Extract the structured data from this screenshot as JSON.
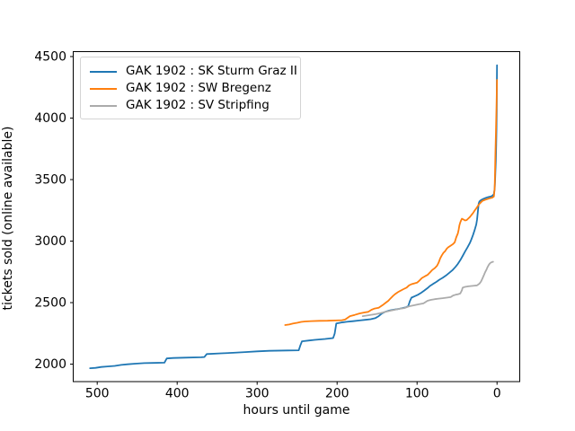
{
  "figure": {
    "background": "#ffffff",
    "spine_color": "#000000",
    "tick_label_color": "#000000"
  },
  "chart_data": {
    "type": "line",
    "title": "",
    "xlabel": "hours until game",
    "ylabel": "tickets sold (online available)",
    "x_axis_reversed": true,
    "xlim": [
      530,
      -28.4
    ],
    "ylim": [
      1858,
      4540
    ],
    "x_ticks": [
      500,
      400,
      300,
      200,
      100,
      0
    ],
    "y_ticks": [
      2000,
      2500,
      3000,
      3500,
      4000,
      4500
    ],
    "grid": false,
    "legend_position": "upper-left",
    "series": [
      {
        "name": "GAK 1902 : SK Sturm Graz II",
        "color": "#1f77b4",
        "points": [
          [
            509,
            1967
          ],
          [
            502,
            1970
          ],
          [
            495,
            1977
          ],
          [
            487,
            1981
          ],
          [
            478,
            1986
          ],
          [
            470,
            1994
          ],
          [
            462,
            1999
          ],
          [
            452,
            2004
          ],
          [
            441,
            2008
          ],
          [
            430,
            2010
          ],
          [
            416,
            2012
          ],
          [
            413,
            2046
          ],
          [
            405,
            2050
          ],
          [
            390,
            2053
          ],
          [
            370,
            2056
          ],
          [
            366,
            2058
          ],
          [
            363,
            2082
          ],
          [
            345,
            2088
          ],
          [
            330,
            2092
          ],
          [
            315,
            2098
          ],
          [
            300,
            2104
          ],
          [
            285,
            2108
          ],
          [
            262,
            2111
          ],
          [
            248,
            2113
          ],
          [
            246,
            2152
          ],
          [
            244,
            2186
          ],
          [
            235,
            2192
          ],
          [
            228,
            2197
          ],
          [
            215,
            2205
          ],
          [
            205,
            2212
          ],
          [
            203,
            2248
          ],
          [
            201,
            2330
          ],
          [
            195,
            2338
          ],
          [
            188,
            2344
          ],
          [
            180,
            2349
          ],
          [
            172,
            2355
          ],
          [
            165,
            2360
          ],
          [
            158,
            2365
          ],
          [
            152,
            2375
          ],
          [
            148,
            2390
          ],
          [
            144,
            2412
          ],
          [
            140,
            2425
          ],
          [
            135,
            2435
          ],
          [
            130,
            2442
          ],
          [
            124,
            2448
          ],
          [
            119,
            2455
          ],
          [
            114,
            2462
          ],
          [
            111,
            2472
          ],
          [
            109,
            2512
          ],
          [
            107,
            2540
          ],
          [
            103,
            2552
          ],
          [
            99,
            2564
          ],
          [
            95,
            2580
          ],
          [
            91,
            2598
          ],
          [
            87,
            2618
          ],
          [
            84,
            2635
          ],
          [
            80,
            2652
          ],
          [
            76,
            2668
          ],
          [
            72,
            2686
          ],
          [
            68,
            2702
          ],
          [
            64,
            2720
          ],
          [
            60,
            2740
          ],
          [
            56,
            2762
          ],
          [
            52,
            2790
          ],
          [
            49,
            2815
          ],
          [
            46,
            2845
          ],
          [
            43,
            2880
          ],
          [
            40,
            2915
          ],
          [
            37,
            2948
          ],
          [
            34,
            2985
          ],
          [
            32,
            3015
          ],
          [
            30,
            3050
          ],
          [
            28,
            3090
          ],
          [
            26,
            3135
          ],
          [
            25,
            3175
          ],
          [
            24,
            3240
          ],
          [
            23,
            3305
          ],
          [
            22,
            3322
          ],
          [
            20,
            3334
          ],
          [
            17,
            3344
          ],
          [
            14,
            3352
          ],
          [
            11,
            3358
          ],
          [
            8,
            3362
          ],
          [
            6,
            3368
          ],
          [
            4,
            3382
          ],
          [
            3,
            3425
          ],
          [
            2.5,
            3485
          ],
          [
            2,
            3565
          ],
          [
            1.5,
            3655
          ],
          [
            1,
            3785
          ],
          [
            0.7,
            3905
          ],
          [
            0.4,
            4060
          ],
          [
            0.2,
            4260
          ],
          [
            0,
            4430
          ]
        ]
      },
      {
        "name": "GAK 1902 : SW Bregenz",
        "color": "#ff7f0e",
        "points": [
          [
            265,
            2318
          ],
          [
            260,
            2322
          ],
          [
            255,
            2330
          ],
          [
            250,
            2336
          ],
          [
            245,
            2343
          ],
          [
            240,
            2347
          ],
          [
            232,
            2350
          ],
          [
            222,
            2352
          ],
          [
            212,
            2353
          ],
          [
            202,
            2355
          ],
          [
            194,
            2357
          ],
          [
            190,
            2362
          ],
          [
            187,
            2376
          ],
          [
            184,
            2390
          ],
          [
            178,
            2400
          ],
          [
            172,
            2412
          ],
          [
            166,
            2420
          ],
          [
            161,
            2425
          ],
          [
            157,
            2442
          ],
          [
            153,
            2452
          ],
          [
            148,
            2458
          ],
          [
            143,
            2480
          ],
          [
            139,
            2500
          ],
          [
            136,
            2515
          ],
          [
            133,
            2535
          ],
          [
            130,
            2555
          ],
          [
            127,
            2572
          ],
          [
            124,
            2585
          ],
          [
            121,
            2596
          ],
          [
            117,
            2610
          ],
          [
            113,
            2622
          ],
          [
            110,
            2640
          ],
          [
            107,
            2650
          ],
          [
            104,
            2656
          ],
          [
            100,
            2662
          ],
          [
            97,
            2680
          ],
          [
            94,
            2700
          ],
          [
            90,
            2715
          ],
          [
            87,
            2725
          ],
          [
            84,
            2745
          ],
          [
            81,
            2765
          ],
          [
            78,
            2780
          ],
          [
            75,
            2800
          ],
          [
            73,
            2825
          ],
          [
            71,
            2860
          ],
          [
            69,
            2885
          ],
          [
            67,
            2905
          ],
          [
            65,
            2918
          ],
          [
            63,
            2938
          ],
          [
            61,
            2950
          ],
          [
            58,
            2963
          ],
          [
            55,
            2976
          ],
          [
            53,
            2990
          ],
          [
            51,
            3030
          ],
          [
            49,
            3062
          ],
          [
            48,
            3092
          ],
          [
            47,
            3130
          ],
          [
            46,
            3152
          ],
          [
            45,
            3168
          ],
          [
            44,
            3182
          ],
          [
            42,
            3176
          ],
          [
            40,
            3168
          ],
          [
            38,
            3171
          ],
          [
            36,
            3183
          ],
          [
            34,
            3196
          ],
          [
            32,
            3212
          ],
          [
            30,
            3228
          ],
          [
            28,
            3248
          ],
          [
            26,
            3266
          ],
          [
            24,
            3286
          ],
          [
            22,
            3302
          ],
          [
            20,
            3316
          ],
          [
            18,
            3328
          ],
          [
            15,
            3336
          ],
          [
            12,
            3342
          ],
          [
            9,
            3348
          ],
          [
            6,
            3353
          ],
          [
            4,
            3362
          ],
          [
            3,
            3430
          ],
          [
            2.5,
            3560
          ],
          [
            2,
            3710
          ],
          [
            1.5,
            3855
          ],
          [
            1,
            3985
          ],
          [
            0.6,
            4120
          ],
          [
            0.3,
            4235
          ],
          [
            0,
            4310
          ]
        ]
      },
      {
        "name": "GAK 1902 : SV Stripfing",
        "color": "#ababab",
        "points": [
          [
            168,
            2390
          ],
          [
            160,
            2398
          ],
          [
            152,
            2406
          ],
          [
            146,
            2414
          ],
          [
            140,
            2424
          ],
          [
            134,
            2434
          ],
          [
            128,
            2442
          ],
          [
            122,
            2450
          ],
          [
            116,
            2456
          ],
          [
            110,
            2470
          ],
          [
            104,
            2478
          ],
          [
            98,
            2486
          ],
          [
            92,
            2494
          ],
          [
            87,
            2515
          ],
          [
            83,
            2522
          ],
          [
            78,
            2528
          ],
          [
            73,
            2532
          ],
          [
            68,
            2536
          ],
          [
            63,
            2540
          ],
          [
            58,
            2545
          ],
          [
            55,
            2558
          ],
          [
            52,
            2564
          ],
          [
            49,
            2568
          ],
          [
            46,
            2574
          ],
          [
            44,
            2600
          ],
          [
            43,
            2622
          ],
          [
            40,
            2628
          ],
          [
            36,
            2632
          ],
          [
            32,
            2635
          ],
          [
            28,
            2638
          ],
          [
            25,
            2640
          ],
          [
            22,
            2654
          ],
          [
            20,
            2672
          ],
          [
            18,
            2700
          ],
          [
            16,
            2730
          ],
          [
            15,
            2746
          ],
          [
            13,
            2772
          ],
          [
            12,
            2786
          ],
          [
            11,
            2798
          ],
          [
            10,
            2810
          ],
          [
            9,
            2818
          ],
          [
            8,
            2824
          ],
          [
            7,
            2828
          ],
          [
            6,
            2830
          ],
          [
            5,
            2832
          ]
        ]
      }
    ]
  }
}
